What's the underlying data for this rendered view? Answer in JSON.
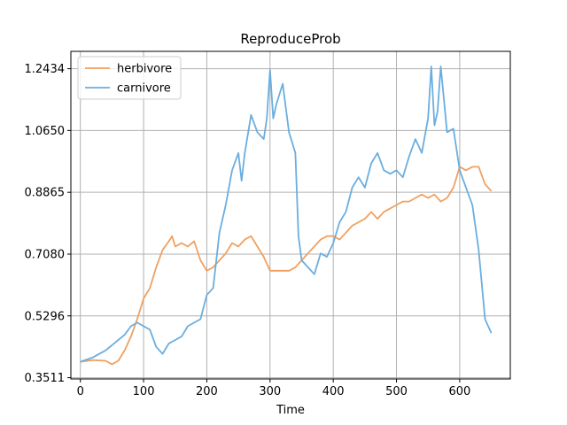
{
  "chart_data": {
    "type": "line",
    "title": "ReproduceProb",
    "xlabel": "Time",
    "ylabel": "",
    "xlim": [
      -15,
      680
    ],
    "ylim": [
      0.3475,
      1.2935
    ],
    "xticks": [
      0,
      100,
      200,
      300,
      400,
      500,
      600
    ],
    "xtick_labels": [
      "0",
      "100",
      "200",
      "300",
      "400",
      "500",
      "600"
    ],
    "yticks": [
      0.3511,
      0.5296,
      0.708,
      0.8865,
      1.065,
      1.2434
    ],
    "ytick_labels": [
      "0.3511",
      "0.5296",
      "0.7080",
      "0.8865",
      "1.0650",
      "1.2434"
    ],
    "grid": true,
    "legend_position": "top-left",
    "series": [
      {
        "name": "herbivore",
        "color": "#f0a060",
        "x": [
          0,
          20,
          40,
          50,
          60,
          70,
          80,
          90,
          100,
          110,
          120,
          130,
          140,
          145,
          150,
          160,
          170,
          180,
          190,
          200,
          210,
          220,
          230,
          240,
          250,
          260,
          270,
          280,
          290,
          300,
          310,
          320,
          330,
          340,
          350,
          360,
          370,
          380,
          390,
          400,
          410,
          420,
          430,
          440,
          450,
          460,
          470,
          480,
          490,
          500,
          510,
          520,
          530,
          540,
          550,
          560,
          570,
          580,
          590,
          600,
          610,
          620,
          630,
          640,
          650
        ],
        "y": [
          0.397,
          0.402,
          0.4,
          0.39,
          0.4,
          0.43,
          0.47,
          0.52,
          0.58,
          0.61,
          0.67,
          0.72,
          0.745,
          0.76,
          0.73,
          0.74,
          0.73,
          0.745,
          0.69,
          0.66,
          0.67,
          0.69,
          0.71,
          0.74,
          0.73,
          0.75,
          0.76,
          0.73,
          0.7,
          0.66,
          0.66,
          0.66,
          0.66,
          0.67,
          0.69,
          0.71,
          0.73,
          0.75,
          0.76,
          0.76,
          0.75,
          0.77,
          0.79,
          0.8,
          0.81,
          0.83,
          0.81,
          0.83,
          0.84,
          0.85,
          0.86,
          0.86,
          0.87,
          0.88,
          0.87,
          0.88,
          0.86,
          0.87,
          0.9,
          0.96,
          0.95,
          0.96,
          0.96,
          0.91,
          0.89
        ]
      },
      {
        "name": "carnivore",
        "color": "#6aaee0",
        "x": [
          0,
          20,
          40,
          60,
          70,
          80,
          90,
          100,
          110,
          120,
          125,
          130,
          140,
          150,
          160,
          170,
          180,
          190,
          200,
          210,
          220,
          230,
          240,
          250,
          255,
          260,
          270,
          280,
          290,
          295,
          300,
          305,
          310,
          320,
          330,
          340,
          345,
          350,
          360,
          370,
          380,
          390,
          400,
          410,
          420,
          430,
          440,
          450,
          460,
          470,
          480,
          490,
          500,
          510,
          520,
          530,
          540,
          550,
          555,
          560,
          565,
          570,
          580,
          590,
          600,
          610,
          620,
          630,
          640,
          650
        ],
        "y": [
          0.397,
          0.41,
          0.43,
          0.46,
          0.475,
          0.5,
          0.51,
          0.5,
          0.49,
          0.44,
          0.43,
          0.42,
          0.45,
          0.46,
          0.47,
          0.5,
          0.51,
          0.52,
          0.59,
          0.61,
          0.77,
          0.85,
          0.95,
          1.0,
          0.92,
          1.0,
          1.11,
          1.06,
          1.04,
          1.1,
          1.24,
          1.1,
          1.14,
          1.2,
          1.06,
          1.0,
          0.76,
          0.69,
          0.67,
          0.65,
          0.71,
          0.7,
          0.74,
          0.8,
          0.83,
          0.9,
          0.93,
          0.9,
          0.97,
          1.0,
          0.95,
          0.94,
          0.95,
          0.93,
          0.99,
          1.04,
          1.0,
          1.1,
          1.25,
          1.08,
          1.12,
          1.25,
          1.06,
          1.07,
          0.95,
          0.9,
          0.85,
          0.72,
          0.52,
          0.48
        ]
      }
    ]
  }
}
